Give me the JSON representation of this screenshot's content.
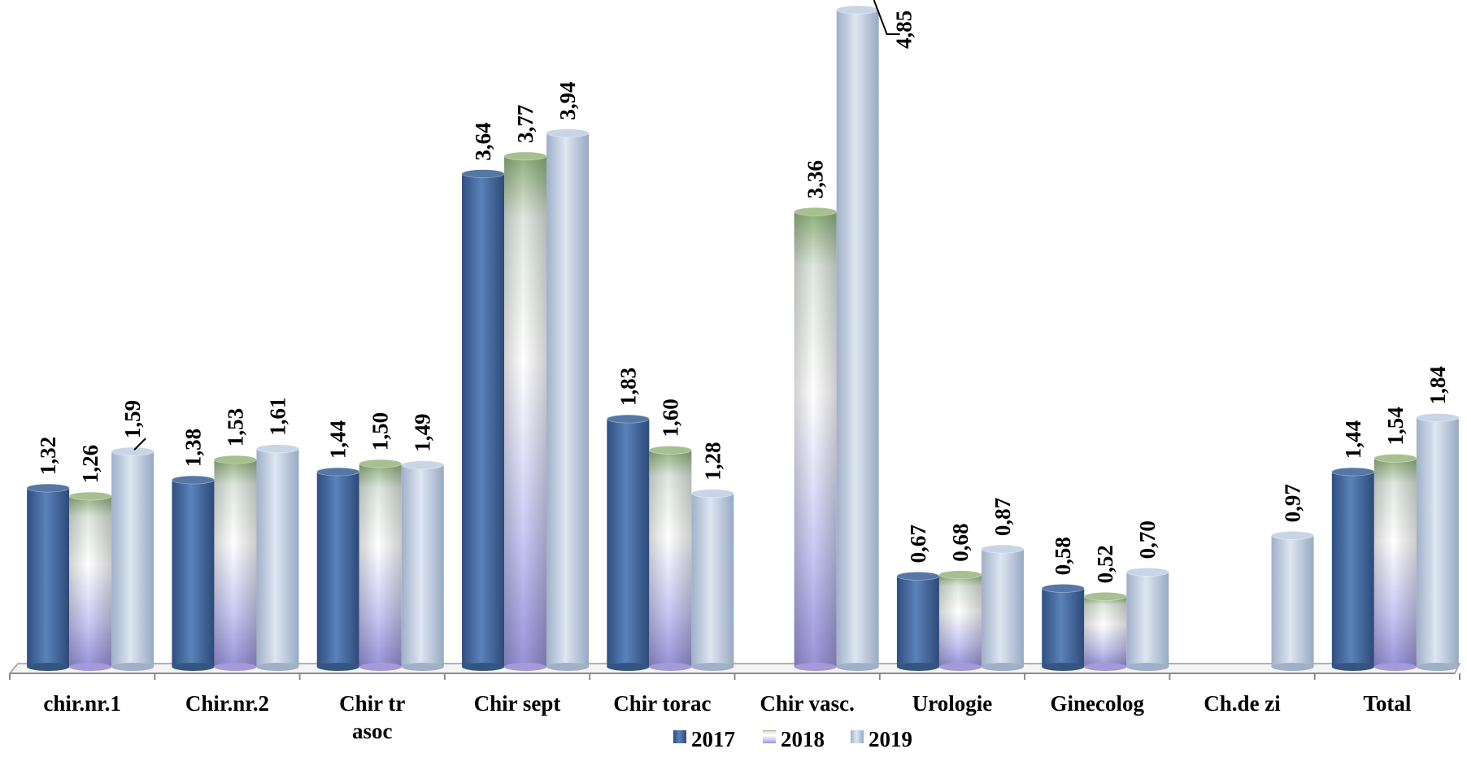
{
  "chart_data": {
    "type": "bar",
    "categories": [
      "chir.nr.1",
      "Chir.nr.2",
      "Chir tr asoc",
      "Chir sept",
      "Chir torac",
      "Chir vasc.",
      "Urologie",
      "Ginecolog",
      "Ch.de zi",
      "Total"
    ],
    "series": [
      {
        "name": "2017",
        "values": [
          1.32,
          1.38,
          1.44,
          3.64,
          1.83,
          null,
          0.67,
          0.58,
          null,
          1.44
        ],
        "labels": [
          "1,32",
          "1,38",
          "1,44",
          "3,64",
          "1,83",
          "",
          "0,67",
          "0,58",
          "",
          "1,44"
        ]
      },
      {
        "name": "2018",
        "values": [
          1.26,
          1.53,
          1.5,
          3.77,
          1.6,
          3.36,
          0.68,
          0.52,
          null,
          1.54
        ],
        "labels": [
          "1,26",
          "1,53",
          "1,50",
          "3,77",
          "1,60",
          "3,36",
          "0,68",
          "0,52",
          "",
          "1,54"
        ]
      },
      {
        "name": "2019",
        "values": [
          1.59,
          1.61,
          1.49,
          3.94,
          1.28,
          4.85,
          0.87,
          0.7,
          0.97,
          1.84
        ],
        "labels": [
          "1,59",
          "1,61",
          "1,49",
          "3,94",
          "1,28",
          "4,85",
          "0,87",
          "0,70",
          "0,97",
          "1,84"
        ]
      }
    ],
    "title": "",
    "xlabel": "",
    "ylabel": "",
    "ylim": [
      0,
      4.85
    ],
    "grid": false,
    "legend": "bottom-center",
    "colors": {
      "2017": "#4a6fa5",
      "2018": "#c8ccf4",
      "2019": "#b9c8de"
    }
  }
}
